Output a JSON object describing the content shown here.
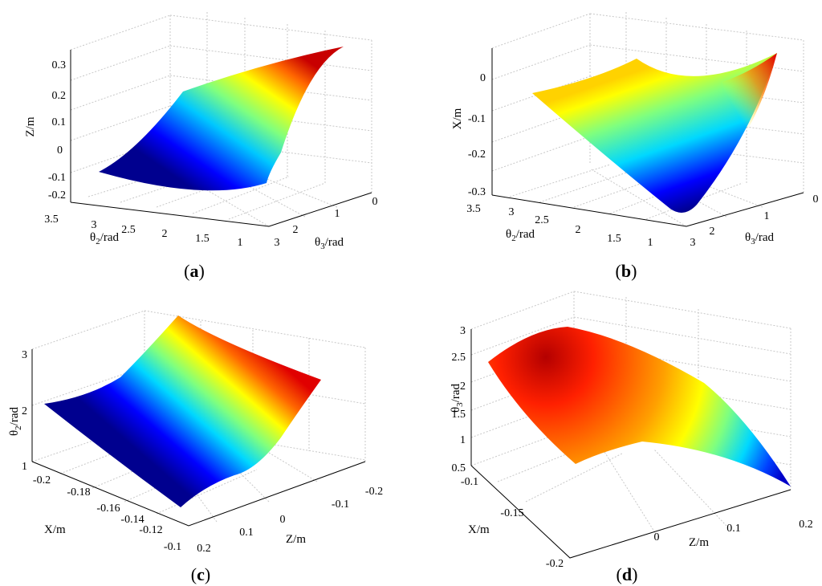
{
  "chart_data": [
    {
      "panel": "a",
      "type": "surface",
      "caption": [
        "(",
        "a",
        ")"
      ],
      "axes": {
        "x": {
          "label": "θ2/rad",
          "sym": "θ",
          "sub": "2",
          "unit": "/rad",
          "range": [
            1,
            3.5
          ],
          "ticks": [
            "3.5",
            "3",
            "2.5",
            "2",
            "1.5",
            "1"
          ]
        },
        "y": {
          "label": "θ3/rad",
          "sym": "θ",
          "sub": "3",
          "unit": "/rad",
          "range": [
            0,
            3
          ],
          "ticks": [
            "3",
            "2",
            "1",
            "0"
          ]
        },
        "z": {
          "label": "Z/m",
          "range": [
            -0.2,
            0.3
          ],
          "ticks": [
            "0.3",
            "0.2",
            "0.1",
            "0",
            "-0.1",
            "-0.2"
          ]
        }
      },
      "grid": true,
      "colormap": "jet",
      "surface_corners_z": {
        "theta2_3.5_theta3_3": -0.12,
        "theta2_1_theta3_3": -0.09,
        "theta2_1_theta3_0": 0.28,
        "theta2_3.5_theta3_0": 0.05
      },
      "z_range_observed": [
        -0.16,
        0.28
      ]
    },
    {
      "panel": "b",
      "type": "surface",
      "caption": [
        "(",
        "b",
        ")"
      ],
      "axes": {
        "x": {
          "label": "θ2/rad",
          "sym": "θ",
          "sub": "2",
          "unit": "/rad",
          "range": [
            1,
            3.5
          ],
          "ticks": [
            "3.5",
            "3",
            "2.5",
            "2",
            "1.5",
            "1"
          ]
        },
        "y": {
          "label": "θ3/rad",
          "sym": "θ",
          "sub": "3",
          "unit": "/rad",
          "range": [
            0,
            3
          ],
          "ticks": [
            "3",
            "2",
            "1",
            "0"
          ]
        },
        "z": {
          "label": "X/m",
          "range": [
            -0.3,
            0.05
          ],
          "ticks": [
            "0",
            "-0.1",
            "-0.2",
            "-0.3"
          ]
        }
      },
      "grid": true,
      "colormap": "jet",
      "surface_corners_z": {
        "theta2_3.5_theta3_3": -0.04,
        "theta2_1_theta3_3": -0.3,
        "theta2_1_theta3_0": 0.02,
        "theta2_3.5_theta3_0": -0.05
      },
      "z_range_observed": [
        -0.3,
        0.02
      ]
    },
    {
      "panel": "c",
      "type": "surface",
      "caption": [
        "(",
        "c",
        ")"
      ],
      "axes": {
        "x": {
          "label": "X/m",
          "range": [
            -0.2,
            -0.1
          ],
          "ticks": [
            "-0.2",
            "-0.18",
            "-0.16",
            "-0.14",
            "-0.12",
            "-0.1"
          ]
        },
        "y": {
          "label": "Z/m",
          "range": [
            -0.2,
            0.2
          ],
          "ticks": [
            "0.2",
            "0.1",
            "0",
            "-0.1",
            "-0.2"
          ]
        },
        "z": {
          "label": "θ2/rad",
          "sym": "θ",
          "sub": "2",
          "unit": "/rad",
          "range": [
            1,
            3
          ],
          "ticks": [
            "3",
            "2",
            "1"
          ]
        }
      },
      "grid": true,
      "colormap": "jet",
      "surface_corners_z": {
        "x_-0.2_z_0.2": 2.0,
        "x_-0.1_z_0.2": 1.0,
        "x_-0.1_z_-0.2": 2.2,
        "x_-0.2_z_-0.2": 3.0
      },
      "z_range_observed": [
        1.0,
        3.0
      ]
    },
    {
      "panel": "d",
      "type": "surface",
      "caption": [
        "(",
        "d",
        ")"
      ],
      "axes": {
        "x": {
          "label": "X/m",
          "range": [
            -0.2,
            -0.1
          ],
          "ticks": [
            "-0.1",
            "-0.15",
            "-0.2"
          ]
        },
        "y": {
          "label": "Z/m",
          "range": [
            -0.2,
            0.2
          ],
          "ticks": [
            "0",
            "0.1",
            "0.2"
          ]
        },
        "z": {
          "label": "θ3/rad",
          "sym": "θ",
          "sub": "3",
          "unit": "/rad",
          "range": [
            0.5,
            3
          ],
          "ticks": [
            "3",
            "2.5",
            "2",
            "1.5",
            "1",
            "0.5"
          ]
        }
      },
      "grid": true,
      "colormap": "jet",
      "surface_corners_z": {
        "x_-0.1_z_-0.2": 2.3,
        "x_-0.1_z_0.2": 1.4,
        "x_-0.2_z_0.2": 0.5,
        "x_-0.2_z_-0.2": 1.3
      },
      "z_range_observed": [
        0.5,
        2.8
      ]
    }
  ]
}
